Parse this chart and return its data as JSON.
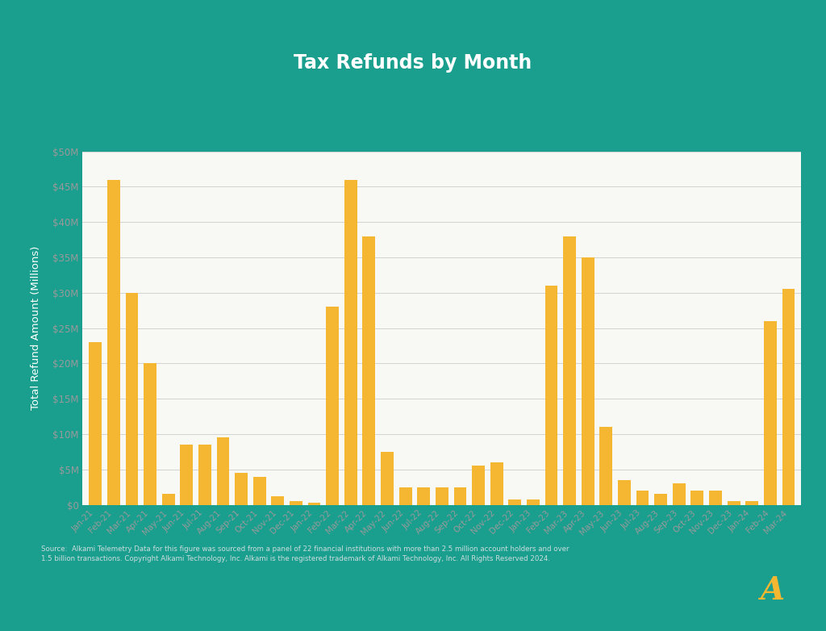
{
  "title": "Tax Refunds by Month",
  "ylabel": "Total Refund Amount (Millions)",
  "background_color": "#1a9f8f",
  "chart_bg": "#f8f8f4",
  "bar_color": "#f5b731",
  "title_color": "#ffffff",
  "axis_label_color": "#ffffff",
  "tick_label_color": "#999999",
  "source_text": "Source:  Alkami Telemetry Data for this figure was sourced from a panel of 22 financial institutions with more than 2.5 million account holders and over\n1.5 billion transactions. Copyright Alkami Technology, Inc. Alkami is the registered trademark of Alkami Technology, Inc. All Rights Reserved 2024.",
  "categories": [
    "Jan-21",
    "Feb-21",
    "Mar-21",
    "Apr-21",
    "May-21",
    "Jun-21",
    "Jul-21",
    "Aug-21",
    "Sep-21",
    "Oct-21",
    "Nov-21",
    "Dec-21",
    "Jan-22",
    "Feb-22",
    "Mar-22",
    "Apr-22",
    "May-22",
    "Jun-22",
    "Jul-22",
    "Aug-22",
    "Sep-22",
    "Oct-22",
    "Nov-22",
    "Dec-22",
    "Jan-23",
    "Feb-23",
    "Mar-23",
    "Apr-23",
    "May-23",
    "Jun-23",
    "Jul-23",
    "Aug-23",
    "Sep-23",
    "Oct-23",
    "Nov-23",
    "Dec-23",
    "Jan-24",
    "Feb-24",
    "Mar-24"
  ],
  "values": [
    23,
    46,
    30,
    20,
    1.5,
    8.5,
    8.5,
    9.5,
    4.5,
    4,
    1.2,
    0.5,
    0.3,
    28,
    46,
    38,
    7.5,
    2.5,
    2.5,
    2.5,
    2.5,
    5.5,
    6,
    0.8,
    0.8,
    31,
    38,
    35,
    11,
    3.5,
    2,
    1.5,
    3,
    2,
    2,
    0.5,
    0.5,
    26,
    30.5
  ],
  "ylim": [
    0,
    50
  ],
  "yticks": [
    0,
    5,
    10,
    15,
    20,
    25,
    30,
    35,
    40,
    45,
    50
  ],
  "ytick_labels": [
    "$0",
    "$5M",
    "$10M",
    "$15M",
    "$20M",
    "$25M",
    "$30M",
    "$35M",
    "$40M",
    "$45M",
    "$50M"
  ],
  "figsize": [
    10.24,
    7.82
  ],
  "dpi": 100
}
